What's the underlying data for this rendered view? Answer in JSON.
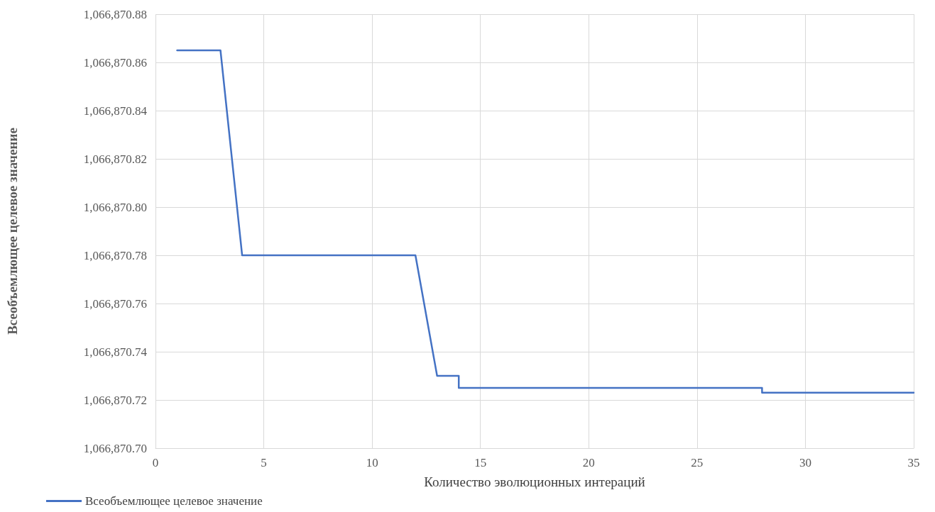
{
  "chart_data": {
    "type": "line",
    "xlabel": "Количество эволюционных интераций",
    "ylabel": "Всеобъемлющее целевое значение",
    "x": [
      1,
      3,
      4,
      12,
      13,
      14,
      14,
      28,
      28,
      35
    ],
    "series": [
      {
        "name": "Всеобъемлющее целевое значение",
        "color": "#4472c4",
        "values": [
          1066870.865,
          1066870.865,
          1066870.78,
          1066870.78,
          1066870.73,
          1066870.73,
          1066870.725,
          1066870.725,
          1066870.723,
          1066870.723
        ]
      }
    ],
    "xlim": [
      0,
      35
    ],
    "xticks": [
      0,
      5,
      10,
      15,
      20,
      25,
      30,
      35
    ],
    "ylim": [
      1066870.7,
      1066870.88
    ],
    "yticks": [
      {
        "value": 1066870.7,
        "label": "1,066,870.70"
      },
      {
        "value": 1066870.72,
        "label": "1,066,870.72"
      },
      {
        "value": 1066870.74,
        "label": "1,066,870.74"
      },
      {
        "value": 1066870.76,
        "label": "1,066,870.76"
      },
      {
        "value": 1066870.78,
        "label": "1,066,870.78"
      },
      {
        "value": 1066870.8,
        "label": "1,066,870.80"
      },
      {
        "value": 1066870.82,
        "label": "1,066,870.82"
      },
      {
        "value": 1066870.84,
        "label": "1,066,870.84"
      },
      {
        "value": 1066870.86,
        "label": "1,066,870.86"
      },
      {
        "value": 1066870.88,
        "label": "1,066,870.88"
      }
    ],
    "grid": true,
    "legend": "bottom left",
    "marker": "none",
    "line_style": "solid"
  }
}
